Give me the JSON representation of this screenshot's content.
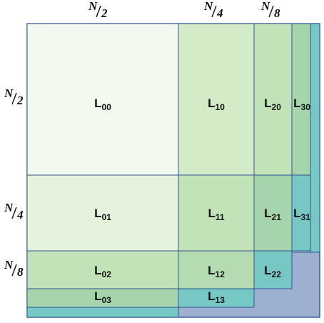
{
  "colors": {
    "border": "#2f5496",
    "white_green": "#f3f9ee",
    "pale_green": "#e6f3dc",
    "light_green": "#d4ebc8",
    "mid_green": "#c2e2b8",
    "green": "#b4dbb2",
    "deep_green": "#a5d4ad",
    "teal": "#77c8c4",
    "slate": "#9db0cf"
  },
  "top_labels": [
    {
      "num": "N",
      "den": "2"
    },
    {
      "num": "N",
      "den": "4"
    },
    {
      "num": "N",
      "den": "8"
    }
  ],
  "left_labels": [
    {
      "num": "N",
      "den": "2"
    },
    {
      "num": "N",
      "den": "4"
    },
    {
      "num": "N",
      "den": "8"
    }
  ],
  "cells": [
    {
      "id": "L00",
      "letter": "L",
      "sub": "00"
    },
    {
      "id": "L10",
      "letter": "L",
      "sub": "10"
    },
    {
      "id": "L20",
      "letter": "L",
      "sub": "20"
    },
    {
      "id": "L30",
      "letter": "L",
      "sub": "30"
    },
    {
      "id": "L01",
      "letter": "L",
      "sub": "01"
    },
    {
      "id": "L11",
      "letter": "L",
      "sub": "11"
    },
    {
      "id": "L21",
      "letter": "L",
      "sub": "21"
    },
    {
      "id": "L31",
      "letter": "L",
      "sub": "31"
    },
    {
      "id": "L02",
      "letter": "L",
      "sub": "02"
    },
    {
      "id": "L12",
      "letter": "L",
      "sub": "12"
    },
    {
      "id": "L22",
      "letter": "L",
      "sub": "22"
    },
    {
      "id": "L03",
      "letter": "L",
      "sub": "03"
    },
    {
      "id": "L13",
      "letter": "L",
      "sub": "13"
    }
  ]
}
